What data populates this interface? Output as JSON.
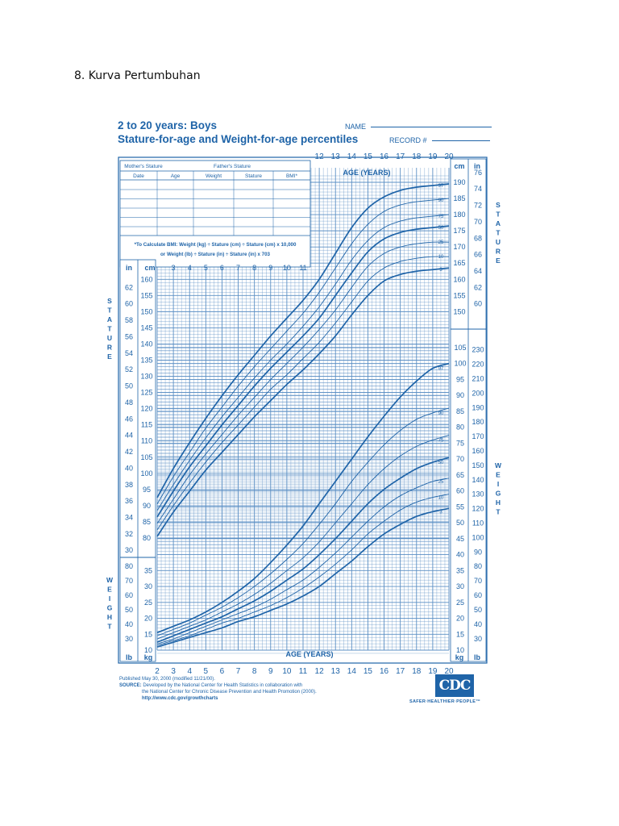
{
  "document": {
    "heading": "8. Kurva Pertumbuhan"
  },
  "header": {
    "title_line1": "2 to 20 years: Boys",
    "title_line2": "Stature-for-age and Weight-for-age percentiles",
    "name_label": "NAME",
    "record_label": "RECORD #"
  },
  "record_table": {
    "top_labels": [
      "Mother's Stature",
      "Father's Stature"
    ],
    "columns": [
      "Date",
      "Age",
      "Weight",
      "Stature",
      "BMI*"
    ],
    "note_line1": "*To Calculate BMI: Weight (kg) ÷ Stature (cm) ÷ Stature (cm) x 10,000",
    "note_line2": "or Weight (lb) ÷ Stature (in) ÷ Stature (in) x 703"
  },
  "footer": {
    "published": "Published May 30, 2000 (modified 11/21/00).",
    "source_label": "SOURCE:",
    "source_line1": "Developed by the National Center for Health Statistics in collaboration with",
    "source_line2": "the National Center for Chronic Disease Prevention and Health Promotion (2000).",
    "url": "http://www.cdc.gov/growthcharts",
    "logo_text": "CDC",
    "tagline": "SAFER·HEALTHIER·PEOPLE™"
  },
  "colors": {
    "ink": "#1f64a8",
    "grid": "#5b8fc4",
    "background": "#ffffff"
  },
  "chart_data": {
    "type": "line",
    "title": "2 to 20 years: Boys Stature-for-age and Weight-for-age percentiles",
    "xlabel": "AGE (YEARS)",
    "xlim": [
      2,
      20
    ],
    "x_ticks": [
      2,
      3,
      4,
      5,
      6,
      7,
      8,
      9,
      10,
      11,
      12,
      13,
      14,
      15,
      16,
      17,
      18,
      19,
      20
    ],
    "x_ticks_upper": [
      3,
      4,
      5,
      6,
      7,
      8,
      9,
      10,
      11
    ],
    "x_ticks_top": [
      12,
      13,
      14,
      15,
      16,
      17,
      18,
      19,
      20
    ],
    "stature": {
      "label": "STATURE",
      "unit_left": "cm",
      "unit_right": "cm",
      "inch_unit": "in",
      "ylim_cm": [
        76,
        193
      ],
      "cm_ticks_left": [
        80,
        85,
        90,
        95,
        100,
        105,
        110,
        115,
        120,
        125,
        130,
        135,
        140,
        145,
        150,
        155,
        160
      ],
      "cm_ticks_right": [
        150,
        155,
        160,
        165,
        170,
        175,
        180,
        185,
        190
      ],
      "in_ticks_left": [
        30,
        32,
        34,
        36,
        38,
        40,
        42,
        44,
        46,
        48,
        50,
        52,
        54,
        56,
        58,
        60,
        62
      ],
      "in_ticks_right": [
        60,
        62,
        64,
        66,
        68,
        70,
        72,
        74,
        76
      ],
      "x": [
        2,
        3,
        4,
        5,
        6,
        7,
        8,
        9,
        10,
        11,
        12,
        13,
        14,
        15,
        16,
        17,
        18,
        19,
        20
      ],
      "series": [
        {
          "name": "97",
          "values": [
            92.5,
            101.5,
            109.5,
            117,
            124,
            130.5,
            136.5,
            142.5,
            148,
            153.5,
            160,
            168,
            176,
            182,
            185.5,
            187.5,
            188.5,
            189,
            189.5
          ]
        },
        {
          "name": "90",
          "values": [
            90.5,
            99,
            106.5,
            114,
            120.5,
            127,
            133,
            138.5,
            144,
            149.5,
            156,
            163.5,
            171,
            177,
            181,
            183,
            184,
            184.5,
            185
          ]
        },
        {
          "name": "75",
          "values": [
            88.5,
            96.5,
            104,
            111,
            117.5,
            123.5,
            129.5,
            135,
            140,
            145.5,
            151.5,
            158.5,
            166,
            172,
            176,
            178,
            179,
            179.5,
            180
          ]
        },
        {
          "name": "50",
          "values": [
            86.5,
            94.5,
            102,
            108.5,
            115,
            121,
            127,
            132.5,
            137.5,
            142.5,
            148,
            155,
            162,
            168.5,
            172.5,
            174.5,
            175.5,
            176,
            176.5
          ]
        },
        {
          "name": "25",
          "values": [
            84.5,
            92,
            99.5,
            106,
            112,
            118,
            123.5,
            129,
            134,
            139,
            144.5,
            150.5,
            157.5,
            164,
            168,
            170,
            171,
            171.5,
            171.5
          ]
        },
        {
          "name": "10",
          "values": [
            82.5,
            90,
            97,
            103.5,
            109.5,
            115,
            120.5,
            126,
            130.5,
            135.5,
            140.5,
            146.5,
            153,
            159.5,
            163.5,
            165.5,
            166.5,
            167,
            167
          ]
        },
        {
          "name": "3",
          "values": [
            80.5,
            88,
            94.5,
            101,
            106.5,
            112,
            117.5,
            122.5,
            127.5,
            132,
            137,
            142.5,
            149,
            155,
            159.5,
            161.5,
            162.5,
            163,
            163.5
          ]
        }
      ]
    },
    "weight": {
      "label": "WEIGHT",
      "unit_left": "kg",
      "unit_right": "kg",
      "lb_unit": "lb",
      "ylim_kg": [
        8,
        105
      ],
      "kg_ticks_left": [
        10,
        15,
        20,
        25,
        30,
        35
      ],
      "kg_ticks_right": [
        10,
        15,
        20,
        25,
        30,
        35,
        40,
        45,
        50,
        55,
        60,
        65,
        70,
        75,
        80,
        85,
        90,
        95,
        100,
        105
      ],
      "lb_ticks_left": [
        30,
        40,
        50,
        60,
        70,
        80
      ],
      "lb_ticks_right": [
        30,
        40,
        50,
        60,
        70,
        80,
        90,
        100,
        110,
        120,
        130,
        140,
        150,
        160,
        170,
        180,
        190,
        200,
        210,
        220,
        230
      ],
      "x": [
        2,
        3,
        4,
        5,
        6,
        7,
        8,
        9,
        10,
        11,
        12,
        13,
        14,
        15,
        16,
        17,
        18,
        19,
        20
      ],
      "series": [
        {
          "name": "97",
          "values": [
            15.5,
            17.5,
            19.5,
            22,
            25,
            28.5,
            32.5,
            37.5,
            43,
            49,
            56,
            63,
            70,
            77,
            83.5,
            89.5,
            94.5,
            98.5,
            100
          ]
        },
        {
          "name": "90",
          "values": [
            14.5,
            16.5,
            18.5,
            21,
            23.5,
            26.5,
            30,
            34,
            38.5,
            43.5,
            49.5,
            56,
            63,
            69,
            74.5,
            79,
            82.5,
            84.5,
            86
          ]
        },
        {
          "name": "75",
          "values": [
            13.5,
            15.5,
            17.5,
            19.5,
            22,
            24.5,
            27.5,
            31,
            35,
            39,
            44,
            50,
            56,
            62,
            67,
            71,
            74,
            76,
            77.5
          ]
        },
        {
          "name": "50",
          "values": [
            12.5,
            14.5,
            16.5,
            18.5,
            20.5,
            23,
            25.5,
            28.5,
            32,
            35.5,
            40,
            45,
            50.5,
            56,
            60.5,
            64,
            67,
            69,
            70.5
          ]
        },
        {
          "name": "25",
          "values": [
            12,
            13.5,
            15.5,
            17.5,
            19.5,
            21.5,
            23.5,
            26,
            29,
            32,
            36,
            40.5,
            45.5,
            50.5,
            55,
            58.5,
            61,
            63,
            64
          ]
        },
        {
          "name": "10",
          "values": [
            11.5,
            13,
            14.5,
            16.5,
            18.5,
            20,
            22,
            24,
            26.5,
            29.5,
            33,
            37,
            41.5,
            46.5,
            50.5,
            54,
            56.5,
            58,
            59
          ]
        },
        {
          "name": "3",
          "values": [
            11,
            12.5,
            14,
            15.5,
            17,
            19,
            20.5,
            22.5,
            24.5,
            27,
            30,
            34,
            38,
            42.5,
            46.5,
            49.5,
            52,
            53.5,
            54.5
          ]
        }
      ]
    },
    "grid": true
  }
}
